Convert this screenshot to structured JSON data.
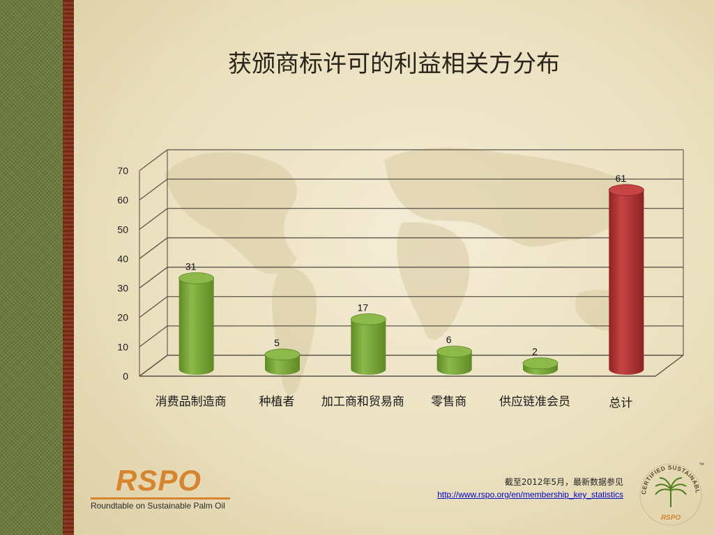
{
  "title": "获颁商标许可的利益相关方分布",
  "chart_data": {
    "type": "bar",
    "categories": [
      "消费品制造商",
      "种植者",
      "加工商和贸易商",
      "零售商",
      "供应链准会员",
      "总计"
    ],
    "values": [
      31,
      5,
      17,
      6,
      2,
      61
    ],
    "data_labels": [
      "31",
      "5",
      "17",
      "6",
      "2",
      "61"
    ],
    "ylim": [
      0,
      70
    ],
    "yticks": [
      "0",
      "10",
      "20",
      "30",
      "40",
      "50",
      "60",
      "70"
    ],
    "grid": true,
    "legend": "none",
    "colors": {
      "bar": "#8db84a",
      "bar_dark": "#5f8a24",
      "total_bar": "#c64444",
      "total_bar_dark": "#8e2222"
    },
    "highlight_index": 5
  },
  "footer": {
    "logo_text": "RSPO",
    "logo_subtitle": "Roundtable on Sustainable Palm Oil",
    "note_line": "截至2012年5月，最新数据参见",
    "note_link": "http://www.rspo.org/en/membership_key_statistics",
    "badge_text": "CERTIFIED SUSTAINABLE PALM OIL",
    "badge_mark": "RSPO",
    "badge_tm": "™"
  },
  "colors": {
    "accent": "#d7842e",
    "panel_green": "#6b7a3a",
    "stripe": "#8a3b22"
  }
}
